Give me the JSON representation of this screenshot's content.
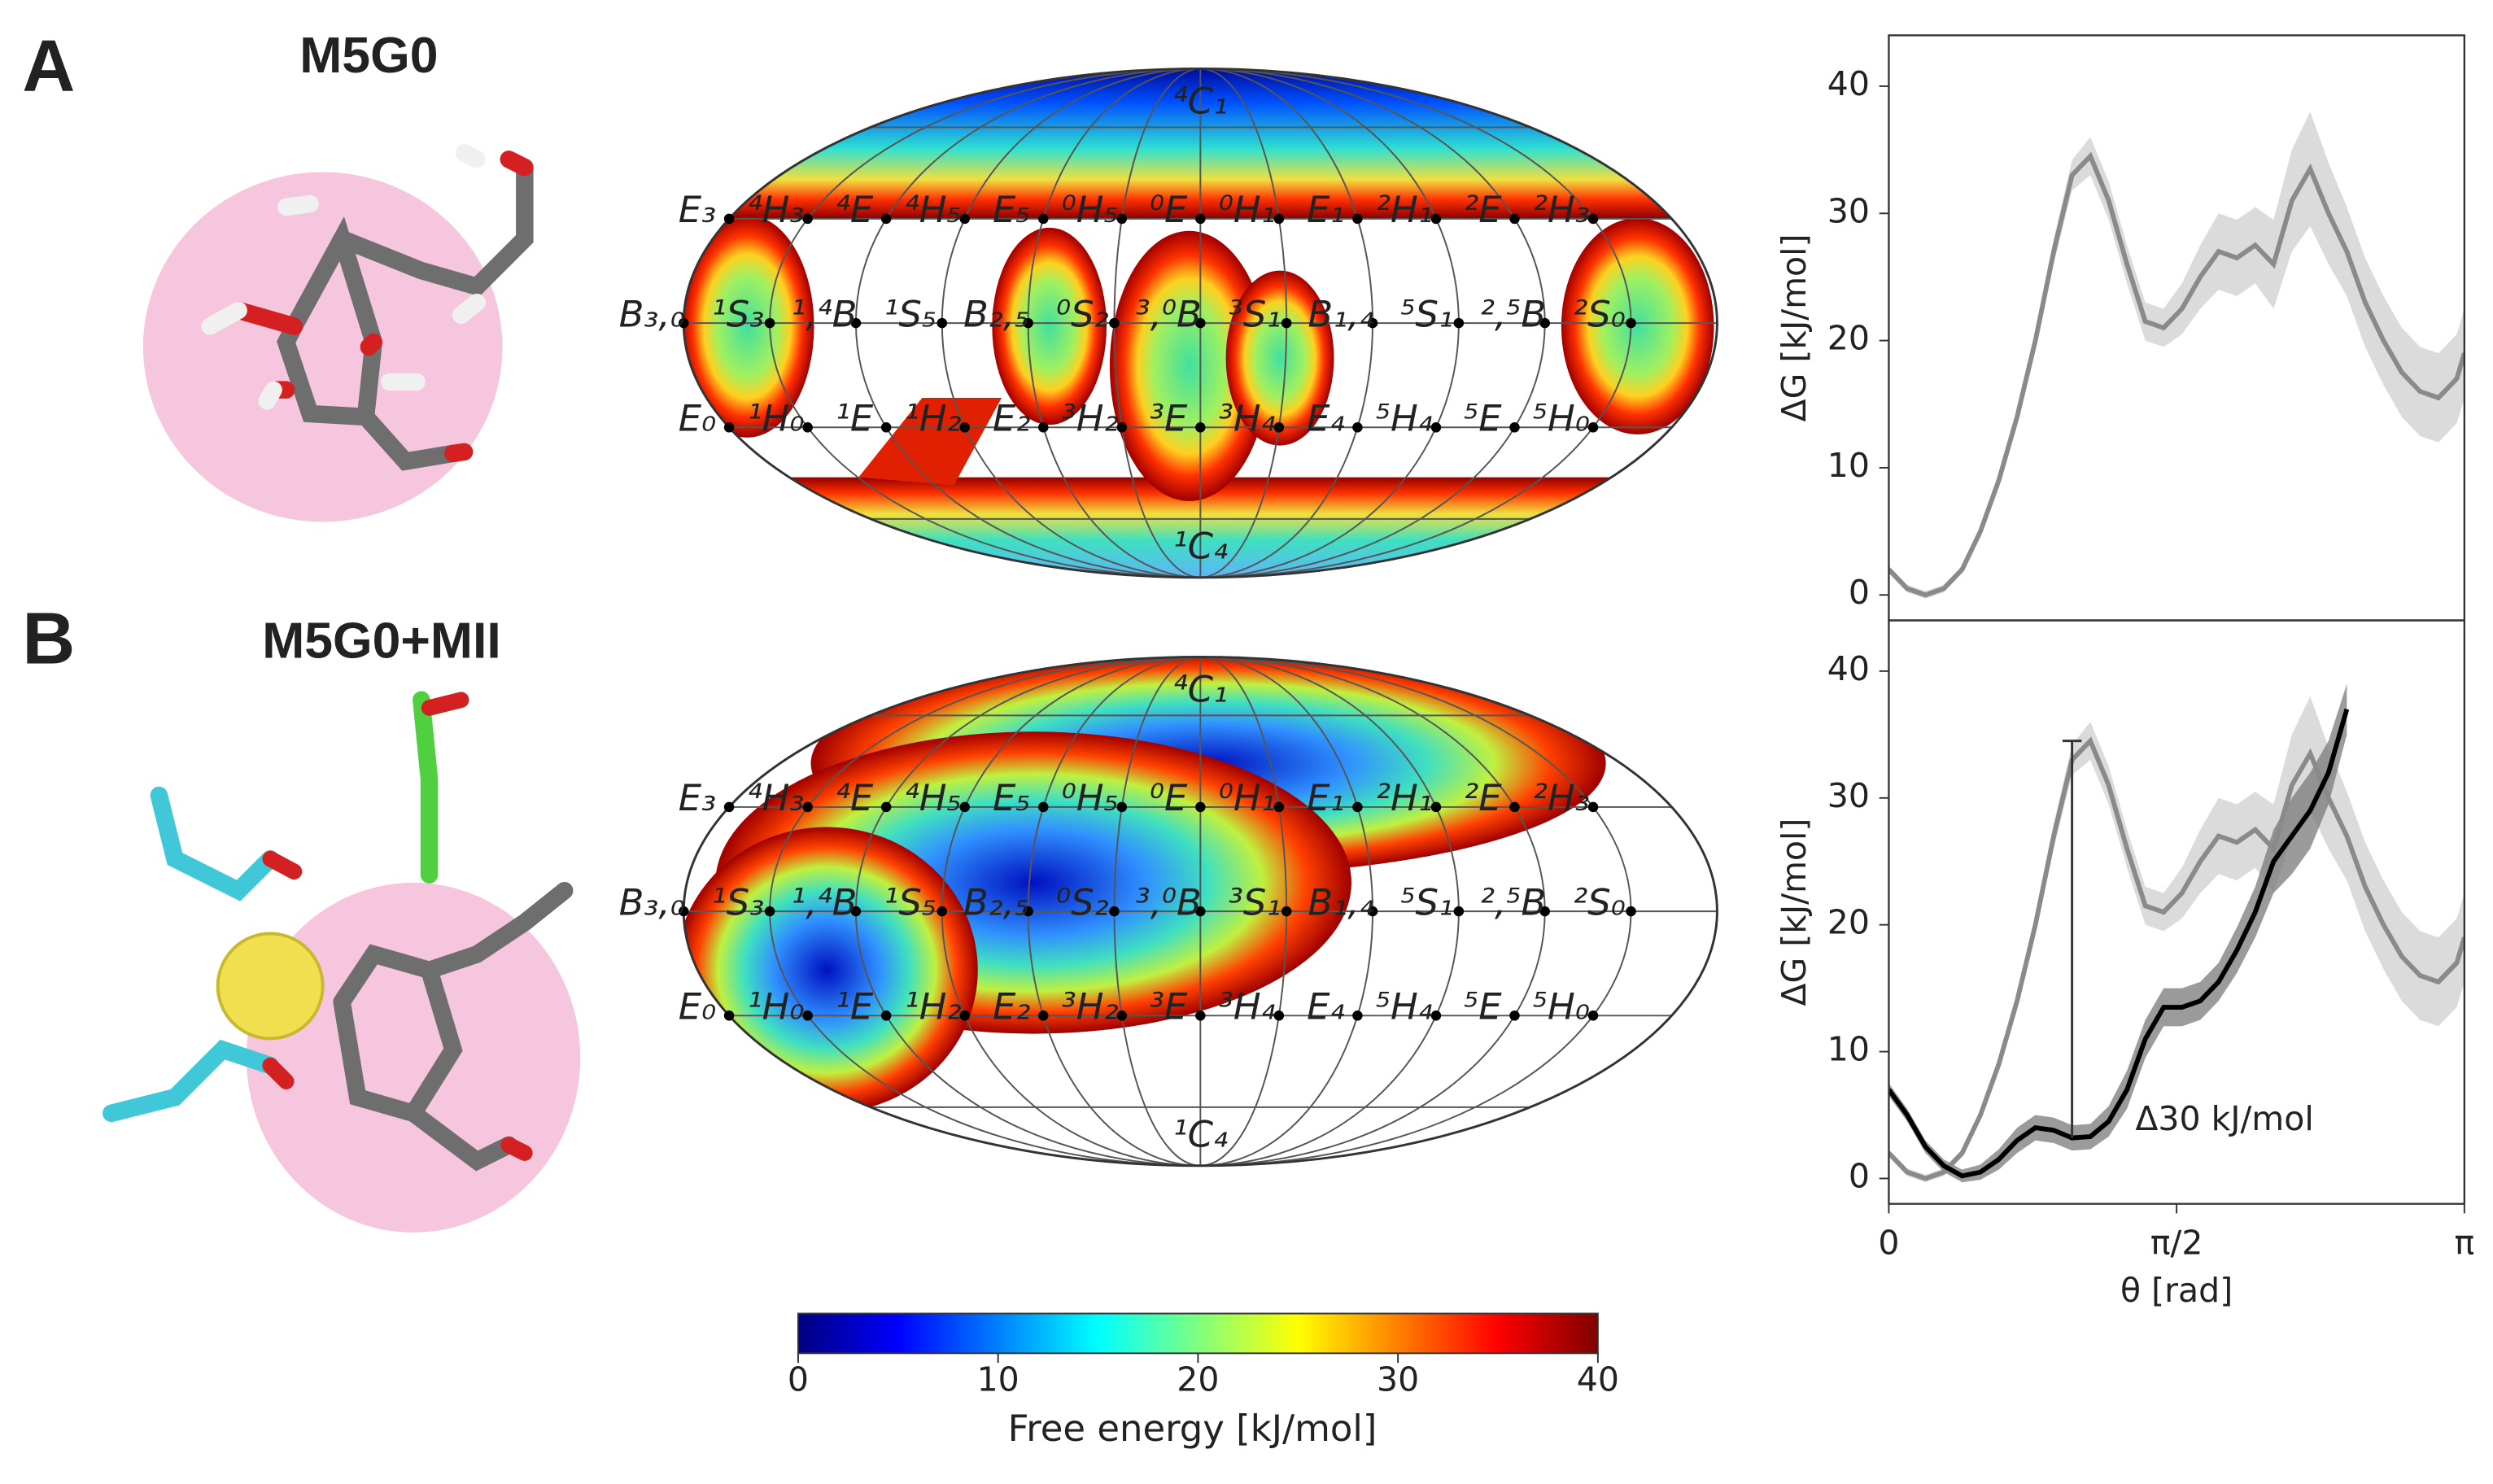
{
  "panels": [
    {
      "letter": "A",
      "title": "M5G0"
    },
    {
      "letter": "B",
      "title": "M5G0+MII"
    }
  ],
  "conformers": {
    "north": "⁴C₁",
    "upper": [
      "E₃",
      "⁴H₃",
      "⁴E",
      "⁴H₅",
      "E₅",
      "⁰H₅",
      "⁰E",
      "⁰H₁",
      "E₁",
      "²H₁",
      "²E",
      "²H₃"
    ],
    "equator": [
      "B₃,₀",
      "¹S₃",
      "¹,⁴B",
      "¹S₅",
      "B₂,₅",
      "⁰S₂",
      "³,⁰B",
      "³S₁",
      "B₁,₄",
      "⁵S₁",
      "²,⁵B",
      "²S₀"
    ],
    "lower": [
      "E₀",
      "¹H₀",
      "¹E",
      "¹H₂",
      "E₂",
      "³H₂",
      "³E",
      "³H₄",
      "E₄",
      "⁵H₄",
      "⁵E",
      "⁵H₀"
    ],
    "south": "¹C₄"
  },
  "colorbar": {
    "label": "Free energy [kJ/mol]",
    "clim": [
      0,
      40
    ],
    "ticks": [
      0,
      10,
      20,
      30,
      40
    ]
  },
  "chart_data": [
    {
      "type": "line",
      "ylabel": "ΔG [kJ/mol]",
      "x": [
        0,
        0.1,
        0.2,
        0.3,
        0.4,
        0.5,
        0.6,
        0.7,
        0.8,
        0.9,
        1.0,
        1.1,
        1.2,
        1.3,
        1.4,
        1.5,
        1.6,
        1.7,
        1.8,
        1.9,
        2.0,
        2.1,
        2.2,
        2.3,
        2.4,
        2.5,
        2.6,
        2.7,
        2.8,
        2.9,
        3.0,
        3.1,
        3.1416
      ],
      "xlim": [
        0,
        3.1416
      ],
      "ylim": [
        -2,
        44
      ],
      "yticks": [
        0,
        10,
        20,
        30,
        40
      ],
      "series": [
        {
          "color": "#8a8a8a",
          "band_color": "#cfcfcf",
          "values": [
            2,
            0.5,
            0,
            0.5,
            2,
            5,
            9,
            14,
            20,
            27,
            33,
            34.5,
            31,
            26,
            21.5,
            21,
            22.5,
            25,
            27,
            26.5,
            27.5,
            26,
            31,
            33.5,
            30,
            27,
            23,
            20,
            17.5,
            16,
            15.5,
            17,
            19
          ],
          "errors": [
            0.3,
            0.3,
            0.3,
            0.3,
            0.3,
            0.4,
            0.5,
            0.6,
            0.8,
            1,
            1.2,
            1.5,
            1.5,
            1.5,
            1.5,
            1.5,
            2,
            2.5,
            3,
            3,
            3,
            3.5,
            4,
            4.5,
            4,
            3.5,
            3.5,
            3.5,
            3.5,
            3.5,
            3.5,
            3.5,
            3.5
          ]
        }
      ]
    },
    {
      "type": "line",
      "ylabel": "ΔG [kJ/mol]",
      "xlabel": "θ [rad]",
      "x": [
        0,
        0.1,
        0.2,
        0.3,
        0.4,
        0.5,
        0.6,
        0.7,
        0.8,
        0.9,
        1.0,
        1.1,
        1.2,
        1.3,
        1.4,
        1.5,
        1.6,
        1.7,
        1.8,
        1.9,
        2.0,
        2.1,
        2.2,
        2.3,
        2.4,
        2.5,
        2.6,
        2.7,
        2.8,
        2.9,
        3.0,
        3.1,
        3.1416
      ],
      "xlim": [
        0,
        3.1416
      ],
      "ylim": [
        -2,
        44
      ],
      "yticks": [
        0,
        10,
        20,
        30,
        40
      ],
      "xticks": [
        0,
        {
          "value": 1.5708,
          "label": "π/2"
        },
        {
          "value": 3.1416,
          "label": "π"
        }
      ],
      "annotation": "Δ30 kJ/mol",
      "series": [
        {
          "color": "#8a8a8a",
          "band_color": "#cfcfcf",
          "values": [
            2,
            0.5,
            0,
            0.5,
            2,
            5,
            9,
            14,
            20,
            27,
            33,
            34.5,
            31,
            26,
            21.5,
            21,
            22.5,
            25,
            27,
            26.5,
            27.5,
            26,
            31,
            33.5,
            30,
            27,
            23,
            20,
            17.5,
            16,
            15.5,
            17,
            19
          ],
          "errors": [
            0.3,
            0.3,
            0.3,
            0.3,
            0.3,
            0.4,
            0.5,
            0.6,
            0.8,
            1,
            1.2,
            1.5,
            1.5,
            1.5,
            1.5,
            1.5,
            2,
            2.5,
            3,
            3,
            3,
            3.5,
            4,
            4.5,
            4,
            3.5,
            3.5,
            3.5,
            3.5,
            3.5,
            3.5,
            3.5,
            3.5
          ]
        },
        {
          "color": "#000000",
          "band_color": "#7a7a7a",
          "values": [
            7,
            5,
            2.5,
            1,
            0.2,
            0.5,
            1.5,
            3,
            4,
            3.8,
            3.2,
            3.3,
            4.5,
            7,
            11,
            13.5,
            13.5,
            14,
            15.5,
            18,
            21,
            25,
            27,
            29,
            32,
            37,
            null,
            null,
            null,
            null,
            null,
            null,
            null
          ],
          "errors": [
            0.5,
            0.5,
            0.5,
            0.5,
            0.5,
            0.6,
            0.8,
            1,
            1,
            1,
            1,
            1,
            1.2,
            1.5,
            1.5,
            1.5,
            1.5,
            1.5,
            1.5,
            1.8,
            2,
            2.5,
            3,
            3,
            2.5,
            2,
            null,
            null,
            null,
            null,
            null,
            null,
            null
          ]
        }
      ]
    }
  ]
}
